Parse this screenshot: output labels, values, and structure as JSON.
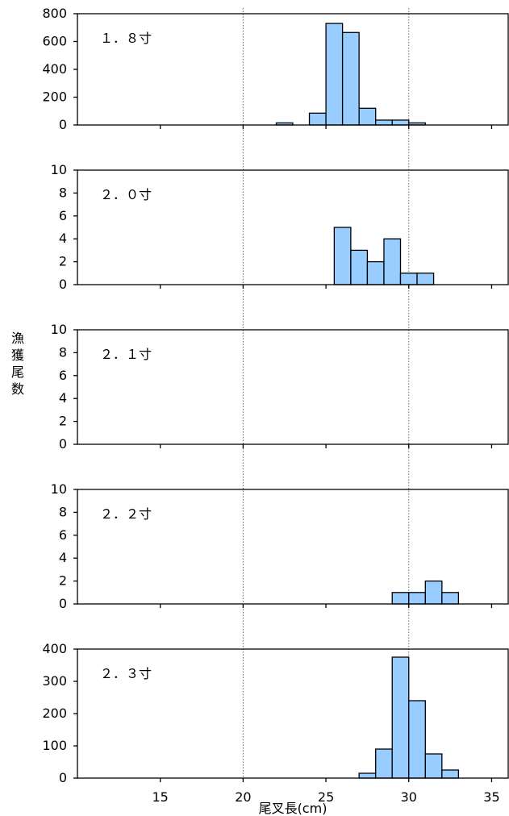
{
  "chart_data": {
    "type": "bar",
    "xlabel": "尾叉長(cm)",
    "ylabel": "漁獲尾数",
    "x_ticks": [
      15,
      20,
      25,
      30,
      35
    ],
    "reference_lines_x": [
      20,
      30
    ],
    "bin_width": 1,
    "panels": [
      {
        "label": "１．８寸",
        "ylim": [
          0,
          800
        ],
        "yticks": [
          0,
          200,
          400,
          600,
          800
        ],
        "bins": [
          {
            "x": 22.5,
            "value": 15
          },
          {
            "x": 24.5,
            "value": 85
          },
          {
            "x": 25.5,
            "value": 730
          },
          {
            "x": 26.5,
            "value": 665
          },
          {
            "x": 27.5,
            "value": 120
          },
          {
            "x": 28.5,
            "value": 35
          },
          {
            "x": 29.5,
            "value": 35
          },
          {
            "x": 30.5,
            "value": 15
          }
        ]
      },
      {
        "label": "２．０寸",
        "ylim": [
          0,
          10
        ],
        "yticks": [
          0,
          2,
          4,
          6,
          8,
          10
        ],
        "bins": [
          {
            "x": 26.0,
            "value": 5
          },
          {
            "x": 27.0,
            "value": 3
          },
          {
            "x": 28.0,
            "value": 2
          },
          {
            "x": 29.0,
            "value": 4
          },
          {
            "x": 30.0,
            "value": 1
          },
          {
            "x": 31.0,
            "value": 1
          }
        ]
      },
      {
        "label": "２．１寸",
        "ylim": [
          0,
          10
        ],
        "yticks": [
          0,
          2,
          4,
          6,
          8,
          10
        ],
        "bins": []
      },
      {
        "label": "２．２寸",
        "ylim": [
          0,
          10
        ],
        "yticks": [
          0,
          2,
          4,
          6,
          8,
          10
        ],
        "bins": [
          {
            "x": 29.5,
            "value": 1
          },
          {
            "x": 30.5,
            "value": 1
          },
          {
            "x": 31.5,
            "value": 2
          },
          {
            "x": 32.5,
            "value": 1
          }
        ]
      },
      {
        "label": "２．３寸",
        "ylim": [
          0,
          400
        ],
        "yticks": [
          0,
          100,
          200,
          300,
          400
        ],
        "bins": [
          {
            "x": 27.5,
            "value": 15
          },
          {
            "x": 28.5,
            "value": 90
          },
          {
            "x": 29.5,
            "value": 375
          },
          {
            "x": 30.5,
            "value": 240
          },
          {
            "x": 31.5,
            "value": 75
          },
          {
            "x": 32.5,
            "value": 25
          }
        ]
      }
    ],
    "bar_color": "#99ccff",
    "bar_edge_color": "#000000",
    "grid": false
  }
}
